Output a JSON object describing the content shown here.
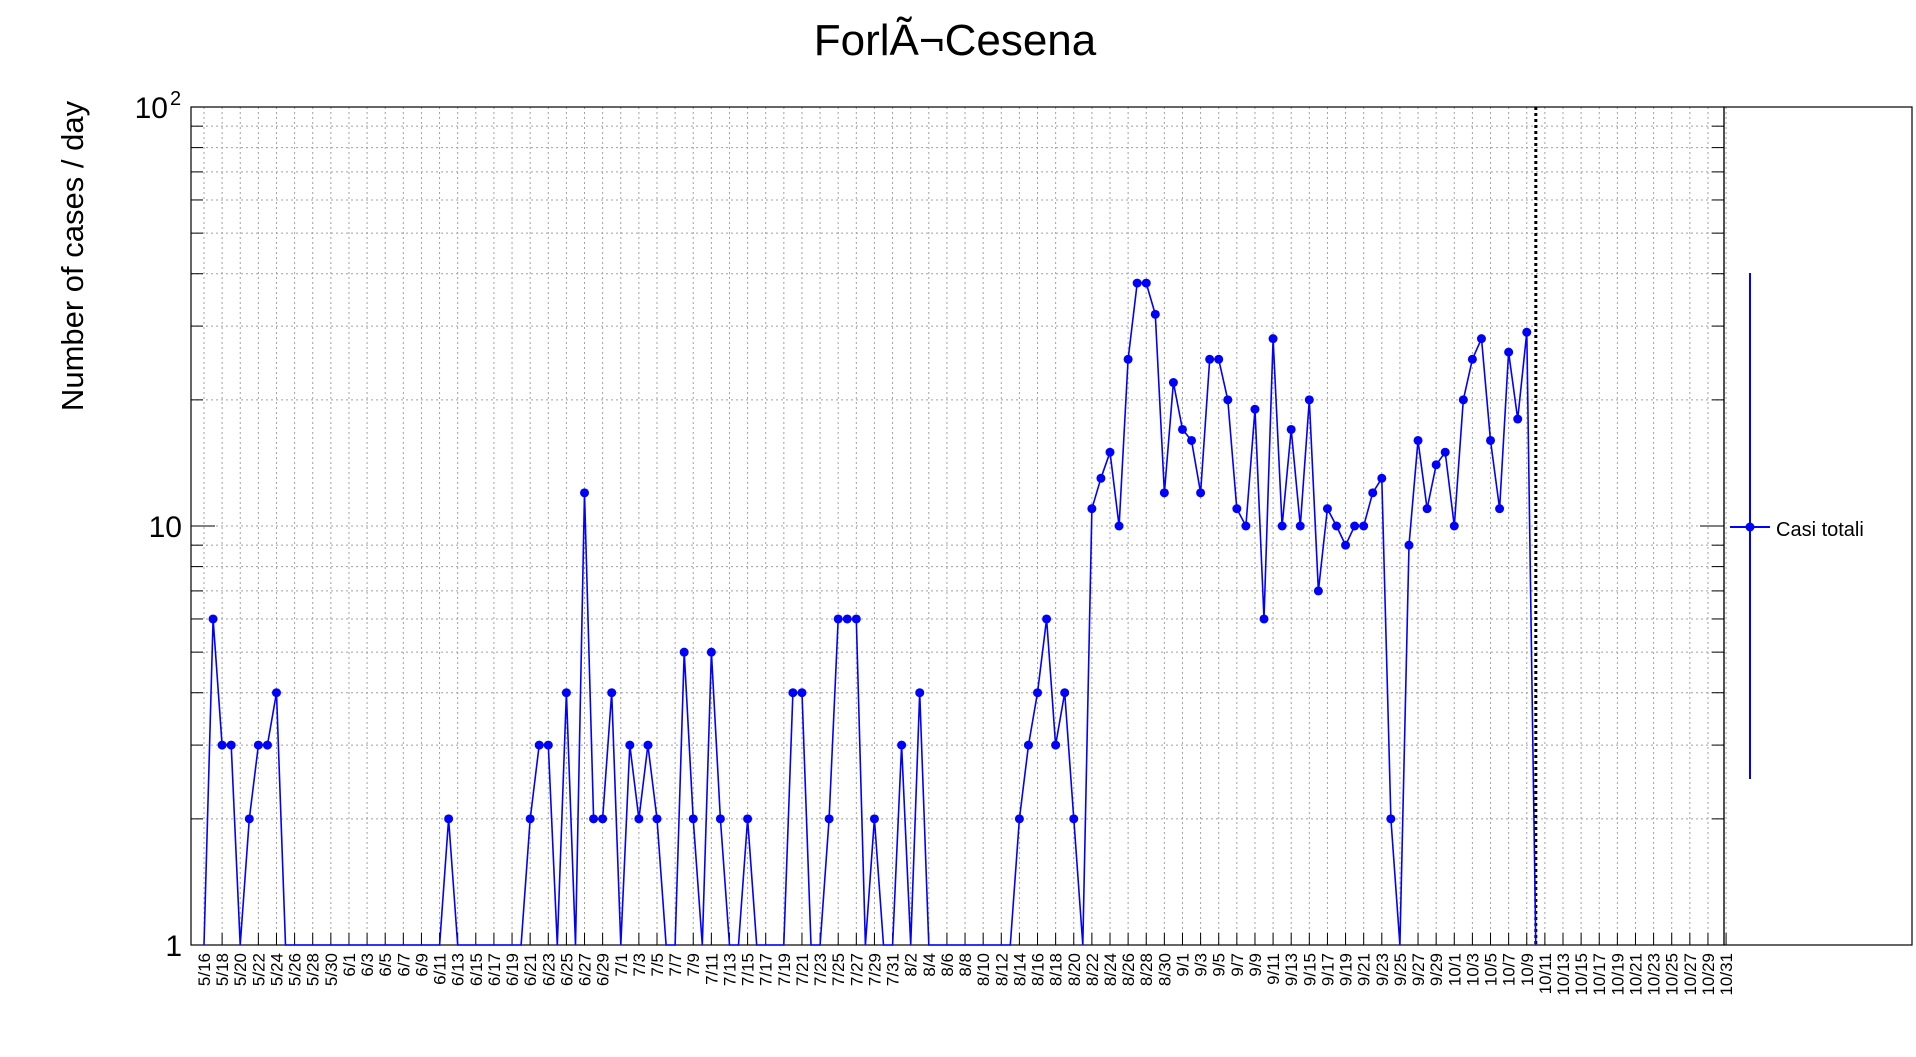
{
  "chart_data": {
    "type": "line",
    "title": "ForlÃ¬Cesena",
    "ylabel": "Number of cases / day",
    "xlabel": "",
    "yscale": "log",
    "ylim": [
      1,
      100
    ],
    "ytick_labels": [
      {
        "value": 1,
        "label": "1"
      },
      {
        "value": 10,
        "label": "10"
      },
      {
        "value": 100,
        "label": "10",
        "sup": "2"
      }
    ],
    "x_tick_labels": [
      "5/16",
      "5/18",
      "5/20",
      "5/22",
      "5/24",
      "5/26",
      "5/28",
      "5/30",
      "6/1",
      "6/3",
      "6/5",
      "6/7",
      "6/9",
      "6/11",
      "6/13",
      "6/15",
      "6/17",
      "6/19",
      "6/21",
      "6/23",
      "6/25",
      "6/27",
      "6/29",
      "7/1",
      "7/3",
      "7/5",
      "7/7",
      "7/9",
      "7/11",
      "7/13",
      "7/15",
      "7/17",
      "7/19",
      "7/21",
      "7/23",
      "7/25",
      "7/27",
      "7/29",
      "7/31",
      "8/2",
      "8/4",
      "8/6",
      "8/8",
      "8/10",
      "8/12",
      "8/14",
      "8/16",
      "8/18",
      "8/20",
      "8/22",
      "8/24",
      "8/26",
      "8/28",
      "8/30",
      "9/1",
      "9/3",
      "9/5",
      "9/7",
      "9/9",
      "9/11",
      "9/13",
      "9/15",
      "9/17",
      "9/19",
      "9/21",
      "9/23",
      "9/25",
      "9/27",
      "9/29",
      "10/1",
      "10/3",
      "10/5",
      "10/7",
      "10/9",
      "10/11",
      "10/13",
      "10/15",
      "10/17",
      "10/19",
      "10/21",
      "10/23",
      "10/25",
      "10/27",
      "10/29",
      "10/31"
    ],
    "grid": true,
    "legend": "right",
    "vertical_marker_date": "10/10",
    "series": [
      {
        "name": "Casi totali",
        "color": "#0000ff",
        "points": [
          [
            "5/16",
            0
          ],
          [
            "5/17",
            6
          ],
          [
            "5/18",
            3
          ],
          [
            "5/19",
            3
          ],
          [
            "5/20",
            0
          ],
          [
            "5/21",
            2
          ],
          [
            "5/22",
            3
          ],
          [
            "5/23",
            3
          ],
          [
            "5/24",
            4
          ],
          [
            "5/25",
            0
          ],
          [
            "5/26",
            0
          ],
          [
            "5/27",
            0
          ],
          [
            "5/28",
            0
          ],
          [
            "5/29",
            0
          ],
          [
            "5/30",
            0
          ],
          [
            "5/31",
            0
          ],
          [
            "6/1",
            0
          ],
          [
            "6/2",
            0
          ],
          [
            "6/3",
            0
          ],
          [
            "6/4",
            0
          ],
          [
            "6/5",
            0
          ],
          [
            "6/6",
            0
          ],
          [
            "6/7",
            0
          ],
          [
            "6/8",
            0
          ],
          [
            "6/9",
            0
          ],
          [
            "6/10",
            0
          ],
          [
            "6/11",
            0
          ],
          [
            "6/12",
            2
          ],
          [
            "6/13",
            0
          ],
          [
            "6/14",
            0
          ],
          [
            "6/15",
            0
          ],
          [
            "6/16",
            0
          ],
          [
            "6/17",
            0
          ],
          [
            "6/18",
            0
          ],
          [
            "6/19",
            0
          ],
          [
            "6/20",
            0
          ],
          [
            "6/21",
            2
          ],
          [
            "6/22",
            3
          ],
          [
            "6/23",
            3
          ],
          [
            "6/24",
            0
          ],
          [
            "6/25",
            4
          ],
          [
            "6/26",
            0
          ],
          [
            "6/27",
            12
          ],
          [
            "6/28",
            2
          ],
          [
            "6/29",
            2
          ],
          [
            "6/30",
            4
          ],
          [
            "7/1",
            0
          ],
          [
            "7/2",
            3
          ],
          [
            "7/3",
            2
          ],
          [
            "7/4",
            3
          ],
          [
            "7/5",
            2
          ],
          [
            "7/6",
            0
          ],
          [
            "7/7",
            0
          ],
          [
            "7/8",
            5
          ],
          [
            "7/9",
            2
          ],
          [
            "7/10",
            0
          ],
          [
            "7/11",
            5
          ],
          [
            "7/12",
            2
          ],
          [
            "7/13",
            0
          ],
          [
            "7/14",
            0
          ],
          [
            "7/15",
            2
          ],
          [
            "7/16",
            0
          ],
          [
            "7/17",
            0
          ],
          [
            "7/18",
            0
          ],
          [
            "7/19",
            0
          ],
          [
            "7/20",
            4
          ],
          [
            "7/21",
            4
          ],
          [
            "7/22",
            0
          ],
          [
            "7/23",
            0
          ],
          [
            "7/24",
            2
          ],
          [
            "7/25",
            6
          ],
          [
            "7/26",
            6
          ],
          [
            "7/27",
            6
          ],
          [
            "7/28",
            0
          ],
          [
            "7/29",
            2
          ],
          [
            "7/30",
            0
          ],
          [
            "7/31",
            0
          ],
          [
            "8/1",
            3
          ],
          [
            "8/2",
            0
          ],
          [
            "8/3",
            4
          ],
          [
            "8/4",
            0
          ],
          [
            "8/5",
            0
          ],
          [
            "8/6",
            0
          ],
          [
            "8/7",
            0
          ],
          [
            "8/8",
            0
          ],
          [
            "8/9",
            0
          ],
          [
            "8/10",
            0
          ],
          [
            "8/11",
            0
          ],
          [
            "8/12",
            0
          ],
          [
            "8/13",
            0
          ],
          [
            "8/14",
            2
          ],
          [
            "8/15",
            3
          ],
          [
            "8/16",
            4
          ],
          [
            "8/17",
            6
          ],
          [
            "8/18",
            3
          ],
          [
            "8/19",
            4
          ],
          [
            "8/20",
            2
          ],
          [
            "8/21",
            0
          ],
          [
            "8/22",
            11
          ],
          [
            "8/23",
            13
          ],
          [
            "8/24",
            15
          ],
          [
            "8/25",
            10
          ],
          [
            "8/26",
            25
          ],
          [
            "8/27",
            38
          ],
          [
            "8/28",
            38
          ],
          [
            "8/29",
            32
          ],
          [
            "8/30",
            12
          ],
          [
            "8/31",
            22
          ],
          [
            "9/1",
            17
          ],
          [
            "9/2",
            16
          ],
          [
            "9/3",
            12
          ],
          [
            "9/4",
            25
          ],
          [
            "9/5",
            25
          ],
          [
            "9/6",
            20
          ],
          [
            "9/7",
            11
          ],
          [
            "9/8",
            10
          ],
          [
            "9/9",
            19
          ],
          [
            "9/10",
            6
          ],
          [
            "9/11",
            28
          ],
          [
            "9/12",
            10
          ],
          [
            "9/13",
            17
          ],
          [
            "9/14",
            10
          ],
          [
            "9/15",
            20
          ],
          [
            "9/16",
            7
          ],
          [
            "9/17",
            11
          ],
          [
            "9/18",
            10
          ],
          [
            "9/19",
            9
          ],
          [
            "9/20",
            10
          ],
          [
            "9/21",
            10
          ],
          [
            "9/22",
            12
          ],
          [
            "9/23",
            13
          ],
          [
            "9/24",
            2
          ],
          [
            "9/25",
            0
          ],
          [
            "9/26",
            9
          ],
          [
            "9/27",
            16
          ],
          [
            "9/28",
            11
          ],
          [
            "9/29",
            14
          ],
          [
            "9/30",
            15
          ],
          [
            "10/1",
            10
          ],
          [
            "10/2",
            20
          ],
          [
            "10/3",
            25
          ],
          [
            "10/4",
            28
          ],
          [
            "10/5",
            16
          ],
          [
            "10/6",
            11
          ],
          [
            "10/7",
            26
          ],
          [
            "10/8",
            18
          ],
          [
            "10/9",
            29
          ],
          [
            "10/10",
            0
          ]
        ]
      }
    ]
  }
}
